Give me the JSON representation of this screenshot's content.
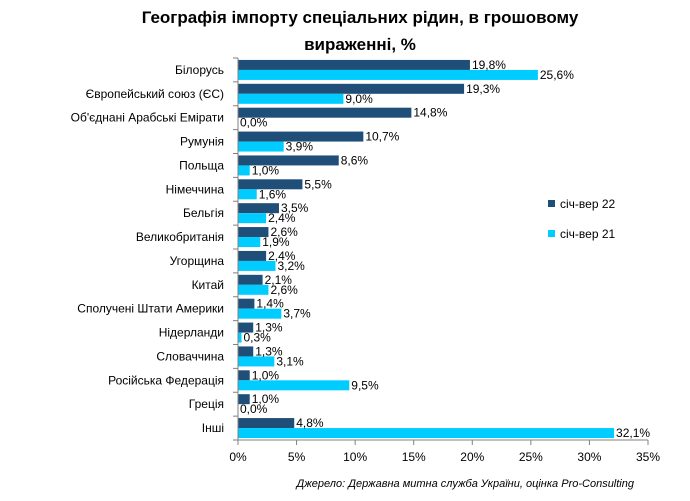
{
  "title_line1": "Географія імпорту спеціальних рідин, в грошовому",
  "title_line2": "вираженні, %",
  "source": "Джерело: Державна митна служба України, оцінка Pro-Consulting",
  "chart_data": {
    "type": "bar",
    "orientation": "horizontal",
    "title": "Географія імпорту спеціальних рідин, в грошовому вираженні, %",
    "categories": [
      "Білорусь",
      "Європейський союз (ЄС)",
      "Об'єднані Арабські Емірати",
      "Румунія",
      "Польща",
      "Німеччина",
      "Бельгія",
      "Великобританія",
      "Угорщина",
      "Китай",
      "Сполучені Штати Америки",
      "Нідерланди",
      "Словаччина",
      "Російська Федерація",
      "Греція",
      "Інші"
    ],
    "series": [
      {
        "name": "січ-вер 22",
        "color": "#1F4E79",
        "values": [
          19.8,
          19.3,
          14.8,
          10.7,
          8.6,
          5.5,
          3.5,
          2.6,
          2.4,
          2.1,
          1.4,
          1.3,
          1.3,
          1.0,
          1.0,
          4.8
        ],
        "labels": [
          "19,8%",
          "19,3%",
          "14,8%",
          "10,7%",
          "8,6%",
          "5,5%",
          "3,5%",
          "2,6%",
          "2,4%",
          "2,1%",
          "1,4%",
          "1,3%",
          "1,3%",
          "1,0%",
          "1,0%",
          "4,8%"
        ]
      },
      {
        "name": "січ-вер 21",
        "color": "#00CCFF",
        "values": [
          25.6,
          9.0,
          0.0,
          3.9,
          1.0,
          1.6,
          2.4,
          1.9,
          3.2,
          2.6,
          3.7,
          0.3,
          3.1,
          9.5,
          0.0,
          32.1
        ],
        "labels": [
          "25,6%",
          "9,0%",
          "0,0%",
          "3,9%",
          "1,0%",
          "1,6%",
          "2,4%",
          "1,9%",
          "3,2%",
          "2,6%",
          "3,7%",
          "0,3%",
          "3,1%",
          "9,5%",
          "0,0%",
          "32,1%"
        ]
      }
    ],
    "xlim": [
      0,
      35
    ],
    "x_ticks": [
      0,
      5,
      10,
      15,
      20,
      25,
      30,
      35
    ],
    "x_tick_labels": [
      "0%",
      "5%",
      "10%",
      "15%",
      "20%",
      "25%",
      "30%",
      "35%"
    ],
    "grid": false,
    "legend_position": "right"
  }
}
